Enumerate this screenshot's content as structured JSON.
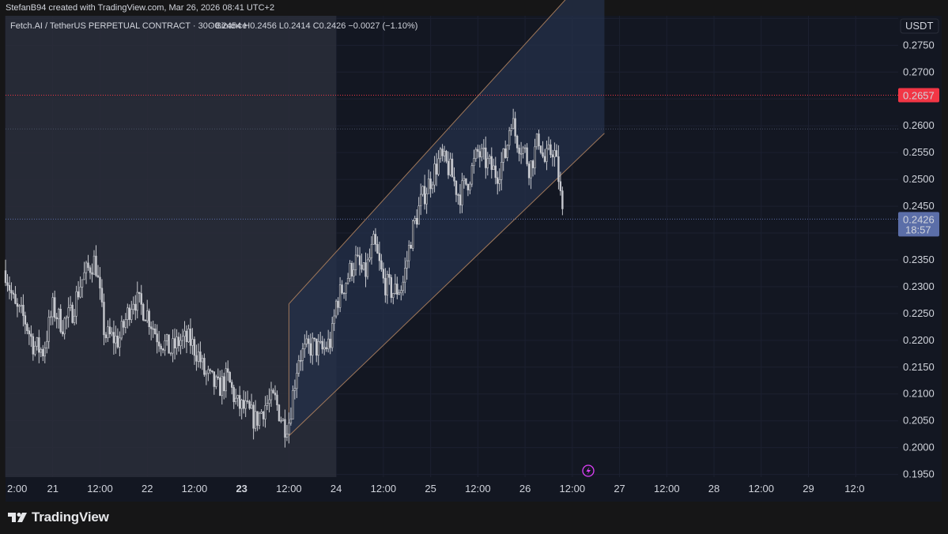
{
  "header": {
    "caption": "StefanB94 created with TradingView.com, Mar 26, 2026 08:41 UTC+2"
  },
  "legend": {
    "symbol": "Fetch.AI / TetherUS PERPETUAL CONTRACT · 30 · Binance",
    "ohlc": "O0.2454  H0.2456  L0.2414  C0.2426  −0.0027 (−1.10%)"
  },
  "currency_badge": "USDT",
  "price_labels": {
    "horizontal_line": "0.2657",
    "last_price": "0.2426",
    "countdown": "18:57"
  },
  "footer": {
    "brand": "TradingView"
  },
  "colors": {
    "background": "#131722",
    "shaded_region": "#2a2e39",
    "channel_fill": "#24304a",
    "channel_border": "#a0785a",
    "candle": "#c7c9cf",
    "horizontal_line": "#f23645",
    "last_price": "#5b6ea8"
  },
  "chart_data": {
    "type": "candlestick",
    "symbol": "Fetch.AI / TetherUS PERPETUAL CONTRACT",
    "interval": "30",
    "exchange": "Binance",
    "x_tick_labels": [
      "2:00",
      "21",
      "12:00",
      "22",
      "12:00",
      "23",
      "12:00",
      "24",
      "12:00",
      "25",
      "12:00",
      "26",
      "12:00",
      "27",
      "12:00",
      "28",
      "12:00",
      "29",
      "12:0"
    ],
    "x_tick_days": [
      20.5,
      21,
      21.5,
      22,
      22.5,
      23,
      23.5,
      24,
      24.5,
      25,
      25.5,
      26,
      26.5,
      27,
      27.5,
      28,
      28.5,
      29,
      29.5
    ],
    "y_ticks": [
      0.195,
      0.2,
      0.205,
      0.21,
      0.215,
      0.22,
      0.225,
      0.23,
      0.235,
      0.24,
      0.245,
      0.25,
      0.255,
      0.26,
      0.265,
      0.27,
      0.275,
      0.28
    ],
    "y_tick_labels": [
      "0.1950",
      "0.2000",
      "0.2050",
      "0.2100",
      "0.2150",
      "0.2200",
      "0.2250",
      "0.2300",
      "0.2350",
      "0.2400",
      "0.2450",
      "0.2500",
      "0.2550",
      "0.2600",
      "0.2650",
      "0.2700",
      "0.2750",
      "0.2800"
    ],
    "ylim": [
      0.1945,
      0.2805
    ],
    "xlim_days": [
      20.5,
      29.95
    ],
    "last_ohlc": {
      "open": 0.2454,
      "high": 0.2456,
      "low": 0.2414,
      "close": 0.2426,
      "change": -0.0027,
      "change_pct": -1.1
    },
    "horizontal_line": 0.2657,
    "shaded_range_days": [
      20.5,
      24
    ],
    "channel": {
      "upper": [
        [
          23.5,
          0.2268
        ],
        [
          26.84,
          0.2915
        ]
      ],
      "lower": [
        [
          23.5,
          0.2022
        ],
        [
          26.84,
          0.2586
        ]
      ]
    },
    "dotted_level": 0.2594,
    "candles_close_path": [
      [
        20.5,
        0.233
      ],
      [
        20.6,
        0.226
      ],
      [
        20.7,
        0.224
      ],
      [
        20.8,
        0.219
      ],
      [
        20.9,
        0.218
      ],
      [
        21.0,
        0.226
      ],
      [
        21.1,
        0.223
      ],
      [
        21.2,
        0.225
      ],
      [
        21.3,
        0.231
      ],
      [
        21.4,
        0.234
      ],
      [
        21.45,
        0.235
      ],
      [
        21.55,
        0.221
      ],
      [
        21.7,
        0.22
      ],
      [
        21.85,
        0.228
      ],
      [
        22.0,
        0.225
      ],
      [
        22.1,
        0.221
      ],
      [
        22.25,
        0.218
      ],
      [
        22.35,
        0.22
      ],
      [
        22.45,
        0.22
      ],
      [
        22.55,
        0.217
      ],
      [
        22.6,
        0.214
      ],
      [
        22.75,
        0.211
      ],
      [
        22.85,
        0.213
      ],
      [
        22.95,
        0.208
      ],
      [
        23.05,
        0.207
      ],
      [
        23.15,
        0.205
      ],
      [
        23.25,
        0.208
      ],
      [
        23.35,
        0.209
      ],
      [
        23.45,
        0.204
      ],
      [
        23.5,
        0.205
      ],
      [
        23.6,
        0.217
      ],
      [
        23.75,
        0.219
      ],
      [
        23.85,
        0.218
      ],
      [
        23.95,
        0.22
      ],
      [
        24.0,
        0.227
      ],
      [
        24.1,
        0.231
      ],
      [
        24.2,
        0.235
      ],
      [
        24.3,
        0.232
      ],
      [
        24.4,
        0.238
      ],
      [
        24.5,
        0.231
      ],
      [
        24.6,
        0.229
      ],
      [
        24.7,
        0.23
      ],
      [
        24.8,
        0.24
      ],
      [
        24.9,
        0.246
      ],
      [
        25.0,
        0.25
      ],
      [
        25.1,
        0.254
      ],
      [
        25.2,
        0.252
      ],
      [
        25.3,
        0.247
      ],
      [
        25.4,
        0.25
      ],
      [
        25.5,
        0.255
      ],
      [
        25.6,
        0.253
      ],
      [
        25.7,
        0.251
      ],
      [
        25.8,
        0.255
      ],
      [
        25.85,
        0.262
      ],
      [
        25.9,
        0.258
      ],
      [
        26.0,
        0.255
      ],
      [
        26.05,
        0.252
      ],
      [
        26.15,
        0.258
      ],
      [
        26.2,
        0.253
      ],
      [
        26.3,
        0.256
      ],
      [
        26.35,
        0.251
      ],
      [
        26.4,
        0.2426
      ]
    ]
  }
}
